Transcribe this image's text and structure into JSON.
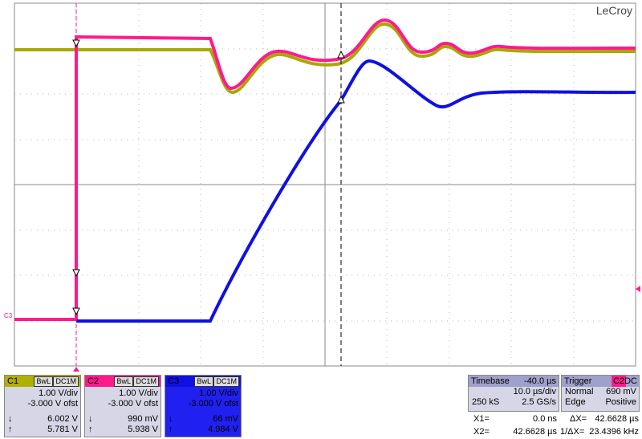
{
  "brand": "LeCroy",
  "trace_label": "C3",
  "channels": [
    {
      "name": "C1",
      "bw": "BwL",
      "coupling": "DC1M",
      "vdiv": "1.00 V/div",
      "offset": "-3.000 V ofst",
      "down": "6.002 V",
      "up": "5.781 V"
    },
    {
      "name": "C2",
      "bw": "BwL",
      "coupling": "DC1M",
      "vdiv": "1.00 V/div",
      "offset": "-3.000 V ofst",
      "down": "990 mV",
      "up": "5.938 V"
    },
    {
      "name": "C3",
      "bw": "BwL",
      "coupling": "DC1M",
      "vdiv": "1.00 V/div",
      "offset": "-3.000 V ofst",
      "down": "66 mV",
      "up": "4.984 V"
    }
  ],
  "timebase": {
    "label": "Timebase",
    "delay": "-40.0 µs",
    "tdiv": "10.0 µs/div",
    "samples": "250 kS",
    "rate": "2.5 GS/s"
  },
  "trigger": {
    "label": "Trigger",
    "source": "C2",
    "coupling": "DC",
    "mode": "Normal",
    "level": "690 mV",
    "type": "Edge",
    "slope": "Positive"
  },
  "cursors": {
    "x1_label": "X1=",
    "x1": "0.0 ns",
    "dx_label": "ΔX=",
    "dx": "42.6628 µs",
    "x2_label": "X2=",
    "x2": "42.6628 µs",
    "inv_label": "1/ΔX=",
    "inv": "23.4396 kHz"
  }
}
